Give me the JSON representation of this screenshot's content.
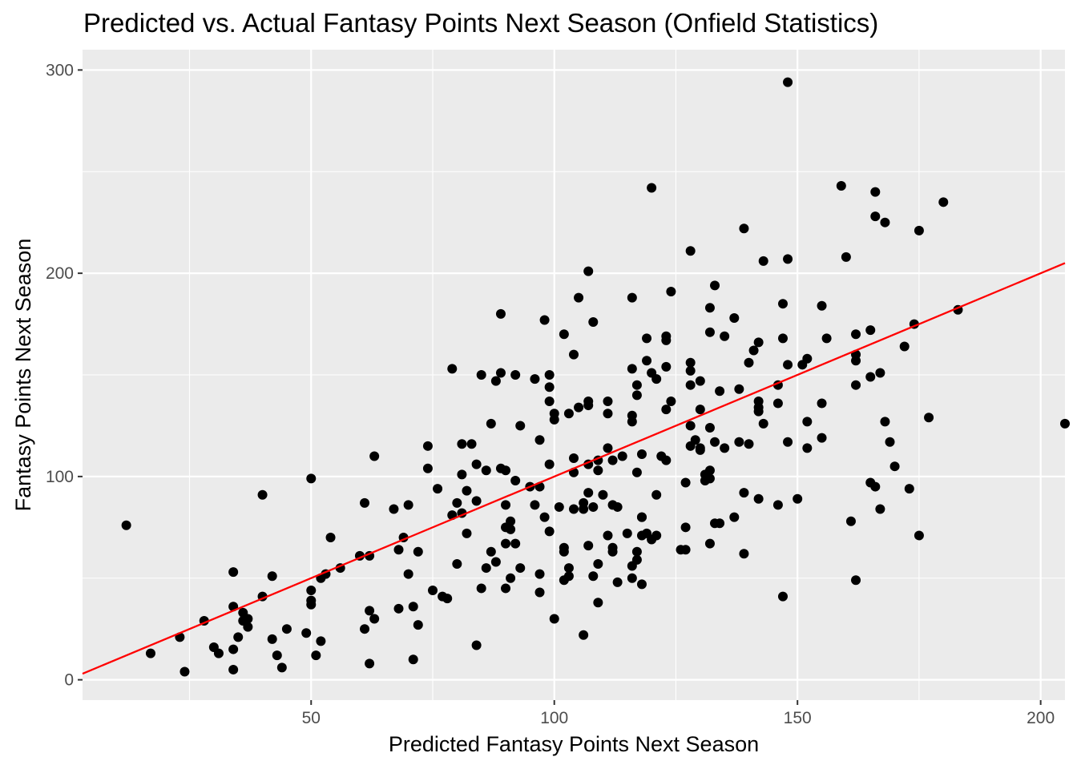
{
  "chart_data": {
    "type": "scatter",
    "title": "Predicted vs. Actual Fantasy Points Next Season (Onfield Statistics)",
    "xlabel": "Predicted Fantasy Points Next Season",
    "ylabel": "Fantasy Points Next Season",
    "xlim": [
      3,
      205
    ],
    "ylim": [
      -10,
      310
    ],
    "x_ticks": [
      50,
      100,
      150,
      200
    ],
    "x_tick_labels": [
      "50",
      "100",
      "150",
      "200"
    ],
    "y_ticks": [
      0,
      100,
      200,
      300
    ],
    "y_tick_labels": [
      "0",
      "100",
      "200",
      "300"
    ],
    "grid": true,
    "legend": "none",
    "reference_line": {
      "x": [
        3,
        205
      ],
      "y": [
        3,
        205
      ],
      "color": "#ff0000"
    },
    "colors": {
      "panel": "#ebebeb",
      "grid_major": "#ffffff",
      "points": "#000000",
      "reference_line": "#ff0000",
      "tick_label": "#4d4d4d"
    },
    "series": [
      {
        "points": [
          [
            12,
            76
          ],
          [
            17,
            13
          ],
          [
            23,
            21
          ],
          [
            24,
            4
          ],
          [
            28,
            29
          ],
          [
            30,
            16
          ],
          [
            31,
            13
          ],
          [
            34,
            53
          ],
          [
            34,
            15
          ],
          [
            34,
            5
          ],
          [
            34,
            36
          ],
          [
            35,
            21
          ],
          [
            36,
            29
          ],
          [
            36,
            33
          ],
          [
            37,
            26
          ],
          [
            37,
            30
          ],
          [
            40,
            91
          ],
          [
            40,
            41
          ],
          [
            42,
            20
          ],
          [
            42,
            51
          ],
          [
            43,
            12
          ],
          [
            44,
            6
          ],
          [
            45,
            25
          ],
          [
            49,
            23
          ],
          [
            50,
            99
          ],
          [
            50,
            44
          ],
          [
            50,
            39
          ],
          [
            50,
            37
          ],
          [
            51,
            12
          ],
          [
            52,
            19
          ],
          [
            52,
            50
          ],
          [
            53,
            52
          ],
          [
            54,
            70
          ],
          [
            56,
            55
          ],
          [
            60,
            61
          ],
          [
            61,
            25
          ],
          [
            61,
            87
          ],
          [
            62,
            8
          ],
          [
            62,
            34
          ],
          [
            62,
            61
          ],
          [
            63,
            30
          ],
          [
            63,
            110
          ],
          [
            67,
            84
          ],
          [
            68,
            35
          ],
          [
            68,
            64
          ],
          [
            69,
            70
          ],
          [
            70,
            52
          ],
          [
            70,
            86
          ],
          [
            71,
            36
          ],
          [
            71,
            10
          ],
          [
            72,
            27
          ],
          [
            72,
            63
          ],
          [
            74,
            115
          ],
          [
            74,
            104
          ],
          [
            75,
            44
          ],
          [
            76,
            94
          ],
          [
            77,
            41
          ],
          [
            78,
            40
          ],
          [
            79,
            81
          ],
          [
            79,
            153
          ],
          [
            80,
            57
          ],
          [
            80,
            87
          ],
          [
            81,
            101
          ],
          [
            81,
            116
          ],
          [
            81,
            82
          ],
          [
            82,
            72
          ],
          [
            82,
            93
          ],
          [
            83,
            116
          ],
          [
            84,
            88
          ],
          [
            84,
            17
          ],
          [
            84,
            106
          ],
          [
            85,
            45
          ],
          [
            85,
            150
          ],
          [
            86,
            55
          ],
          [
            86,
            103
          ],
          [
            87,
            63
          ],
          [
            87,
            126
          ],
          [
            88,
            147
          ],
          [
            88,
            58
          ],
          [
            89,
            151
          ],
          [
            89,
            180
          ],
          [
            89,
            104
          ],
          [
            90,
            75
          ],
          [
            90,
            67
          ],
          [
            90,
            86
          ],
          [
            90,
            45
          ],
          [
            90,
            103
          ],
          [
            91,
            50
          ],
          [
            91,
            78
          ],
          [
            91,
            74
          ],
          [
            92,
            67
          ],
          [
            92,
            98
          ],
          [
            92,
            150
          ],
          [
            93,
            125
          ],
          [
            93,
            55
          ],
          [
            95,
            95
          ],
          [
            96,
            148
          ],
          [
            96,
            86
          ],
          [
            97,
            52
          ],
          [
            97,
            43
          ],
          [
            97,
            118
          ],
          [
            97,
            95
          ],
          [
            98,
            177
          ],
          [
            98,
            80
          ],
          [
            99,
            73
          ],
          [
            99,
            144
          ],
          [
            99,
            150
          ],
          [
            99,
            106
          ],
          [
            99,
            137
          ],
          [
            100,
            128
          ],
          [
            100,
            30
          ],
          [
            100,
            131
          ],
          [
            101,
            85
          ],
          [
            102,
            63
          ],
          [
            102,
            65
          ],
          [
            102,
            170
          ],
          [
            102,
            49
          ],
          [
            103,
            131
          ],
          [
            103,
            55
          ],
          [
            103,
            51
          ],
          [
            104,
            109
          ],
          [
            104,
            160
          ],
          [
            104,
            84
          ],
          [
            104,
            102
          ],
          [
            105,
            188
          ],
          [
            105,
            134
          ],
          [
            106,
            22
          ],
          [
            106,
            87
          ],
          [
            106,
            84
          ],
          [
            107,
            201
          ],
          [
            107,
            137
          ],
          [
            107,
            135
          ],
          [
            107,
            106
          ],
          [
            107,
            92
          ],
          [
            107,
            66
          ],
          [
            108,
            176
          ],
          [
            108,
            85
          ],
          [
            108,
            51
          ],
          [
            109,
            57
          ],
          [
            109,
            38
          ],
          [
            109,
            103
          ],
          [
            109,
            108
          ],
          [
            110,
            91
          ],
          [
            111,
            131
          ],
          [
            111,
            137
          ],
          [
            111,
            114
          ],
          [
            111,
            71
          ],
          [
            112,
            86
          ],
          [
            112,
            108
          ],
          [
            112,
            63
          ],
          [
            112,
            65
          ],
          [
            113,
            48
          ],
          [
            113,
            85
          ],
          [
            114,
            110
          ],
          [
            115,
            72
          ],
          [
            116,
            56
          ],
          [
            116,
            153
          ],
          [
            116,
            188
          ],
          [
            116,
            127
          ],
          [
            116,
            130
          ],
          [
            116,
            50
          ],
          [
            117,
            102
          ],
          [
            117,
            140
          ],
          [
            117,
            145
          ],
          [
            117,
            63
          ],
          [
            117,
            59
          ],
          [
            118,
            71
          ],
          [
            118,
            47
          ],
          [
            118,
            80
          ],
          [
            118,
            111
          ],
          [
            118,
            80
          ],
          [
            119,
            157
          ],
          [
            119,
            168
          ],
          [
            119,
            72
          ],
          [
            120,
            242
          ],
          [
            120,
            69
          ],
          [
            120,
            151
          ],
          [
            121,
            148
          ],
          [
            121,
            71
          ],
          [
            121,
            91
          ],
          [
            122,
            110
          ],
          [
            123,
            169
          ],
          [
            123,
            167
          ],
          [
            123,
            154
          ],
          [
            123,
            108
          ],
          [
            123,
            133
          ],
          [
            124,
            191
          ],
          [
            124,
            137
          ],
          [
            126,
            64
          ],
          [
            127,
            97
          ],
          [
            127,
            75
          ],
          [
            127,
            64
          ],
          [
            128,
            125
          ],
          [
            128,
            152
          ],
          [
            128,
            145
          ],
          [
            128,
            211
          ],
          [
            128,
            156
          ],
          [
            128,
            115
          ],
          [
            129,
            118
          ],
          [
            130,
            113
          ],
          [
            130,
            133
          ],
          [
            130,
            147
          ],
          [
            130,
            114
          ],
          [
            131,
            98
          ],
          [
            131,
            101
          ],
          [
            132,
            183
          ],
          [
            132,
            171
          ],
          [
            132,
            124
          ],
          [
            132,
            103
          ],
          [
            132,
            99
          ],
          [
            132,
            67
          ],
          [
            133,
            117
          ],
          [
            133,
            194
          ],
          [
            133,
            77
          ],
          [
            134,
            142
          ],
          [
            134,
            77
          ],
          [
            135,
            169
          ],
          [
            135,
            114
          ],
          [
            137,
            178
          ],
          [
            137,
            80
          ],
          [
            138,
            143
          ],
          [
            138,
            117
          ],
          [
            139,
            222
          ],
          [
            139,
            92
          ],
          [
            139,
            62
          ],
          [
            140,
            156
          ],
          [
            140,
            116
          ],
          [
            141,
            162
          ],
          [
            142,
            166
          ],
          [
            142,
            137
          ],
          [
            142,
            89
          ],
          [
            142,
            132
          ],
          [
            142,
            134
          ],
          [
            143,
            126
          ],
          [
            143,
            206
          ],
          [
            146,
            136
          ],
          [
            146,
            145
          ],
          [
            146,
            86
          ],
          [
            147,
            185
          ],
          [
            147,
            168
          ],
          [
            147,
            41
          ],
          [
            148,
            294
          ],
          [
            148,
            155
          ],
          [
            148,
            117
          ],
          [
            148,
            207
          ],
          [
            150,
            89
          ],
          [
            151,
            155
          ],
          [
            152,
            158
          ],
          [
            152,
            127
          ],
          [
            152,
            114
          ],
          [
            155,
            136
          ],
          [
            155,
            119
          ],
          [
            155,
            184
          ],
          [
            156,
            168
          ],
          [
            159,
            243
          ],
          [
            160,
            208
          ],
          [
            161,
            78
          ],
          [
            162,
            170
          ],
          [
            162,
            49
          ],
          [
            162,
            157
          ],
          [
            162,
            160
          ],
          [
            162,
            145
          ],
          [
            165,
            149
          ],
          [
            165,
            172
          ],
          [
            165,
            97
          ],
          [
            166,
            95
          ],
          [
            166,
            228
          ],
          [
            166,
            240
          ],
          [
            167,
            84
          ],
          [
            167,
            151
          ],
          [
            168,
            225
          ],
          [
            168,
            127
          ],
          [
            169,
            117
          ],
          [
            170,
            105
          ],
          [
            172,
            164
          ],
          [
            173,
            94
          ],
          [
            174,
            175
          ],
          [
            175,
            221
          ],
          [
            175,
            71
          ],
          [
            177,
            129
          ],
          [
            180,
            235
          ],
          [
            183,
            182
          ],
          [
            205,
            126
          ]
        ]
      }
    ]
  }
}
